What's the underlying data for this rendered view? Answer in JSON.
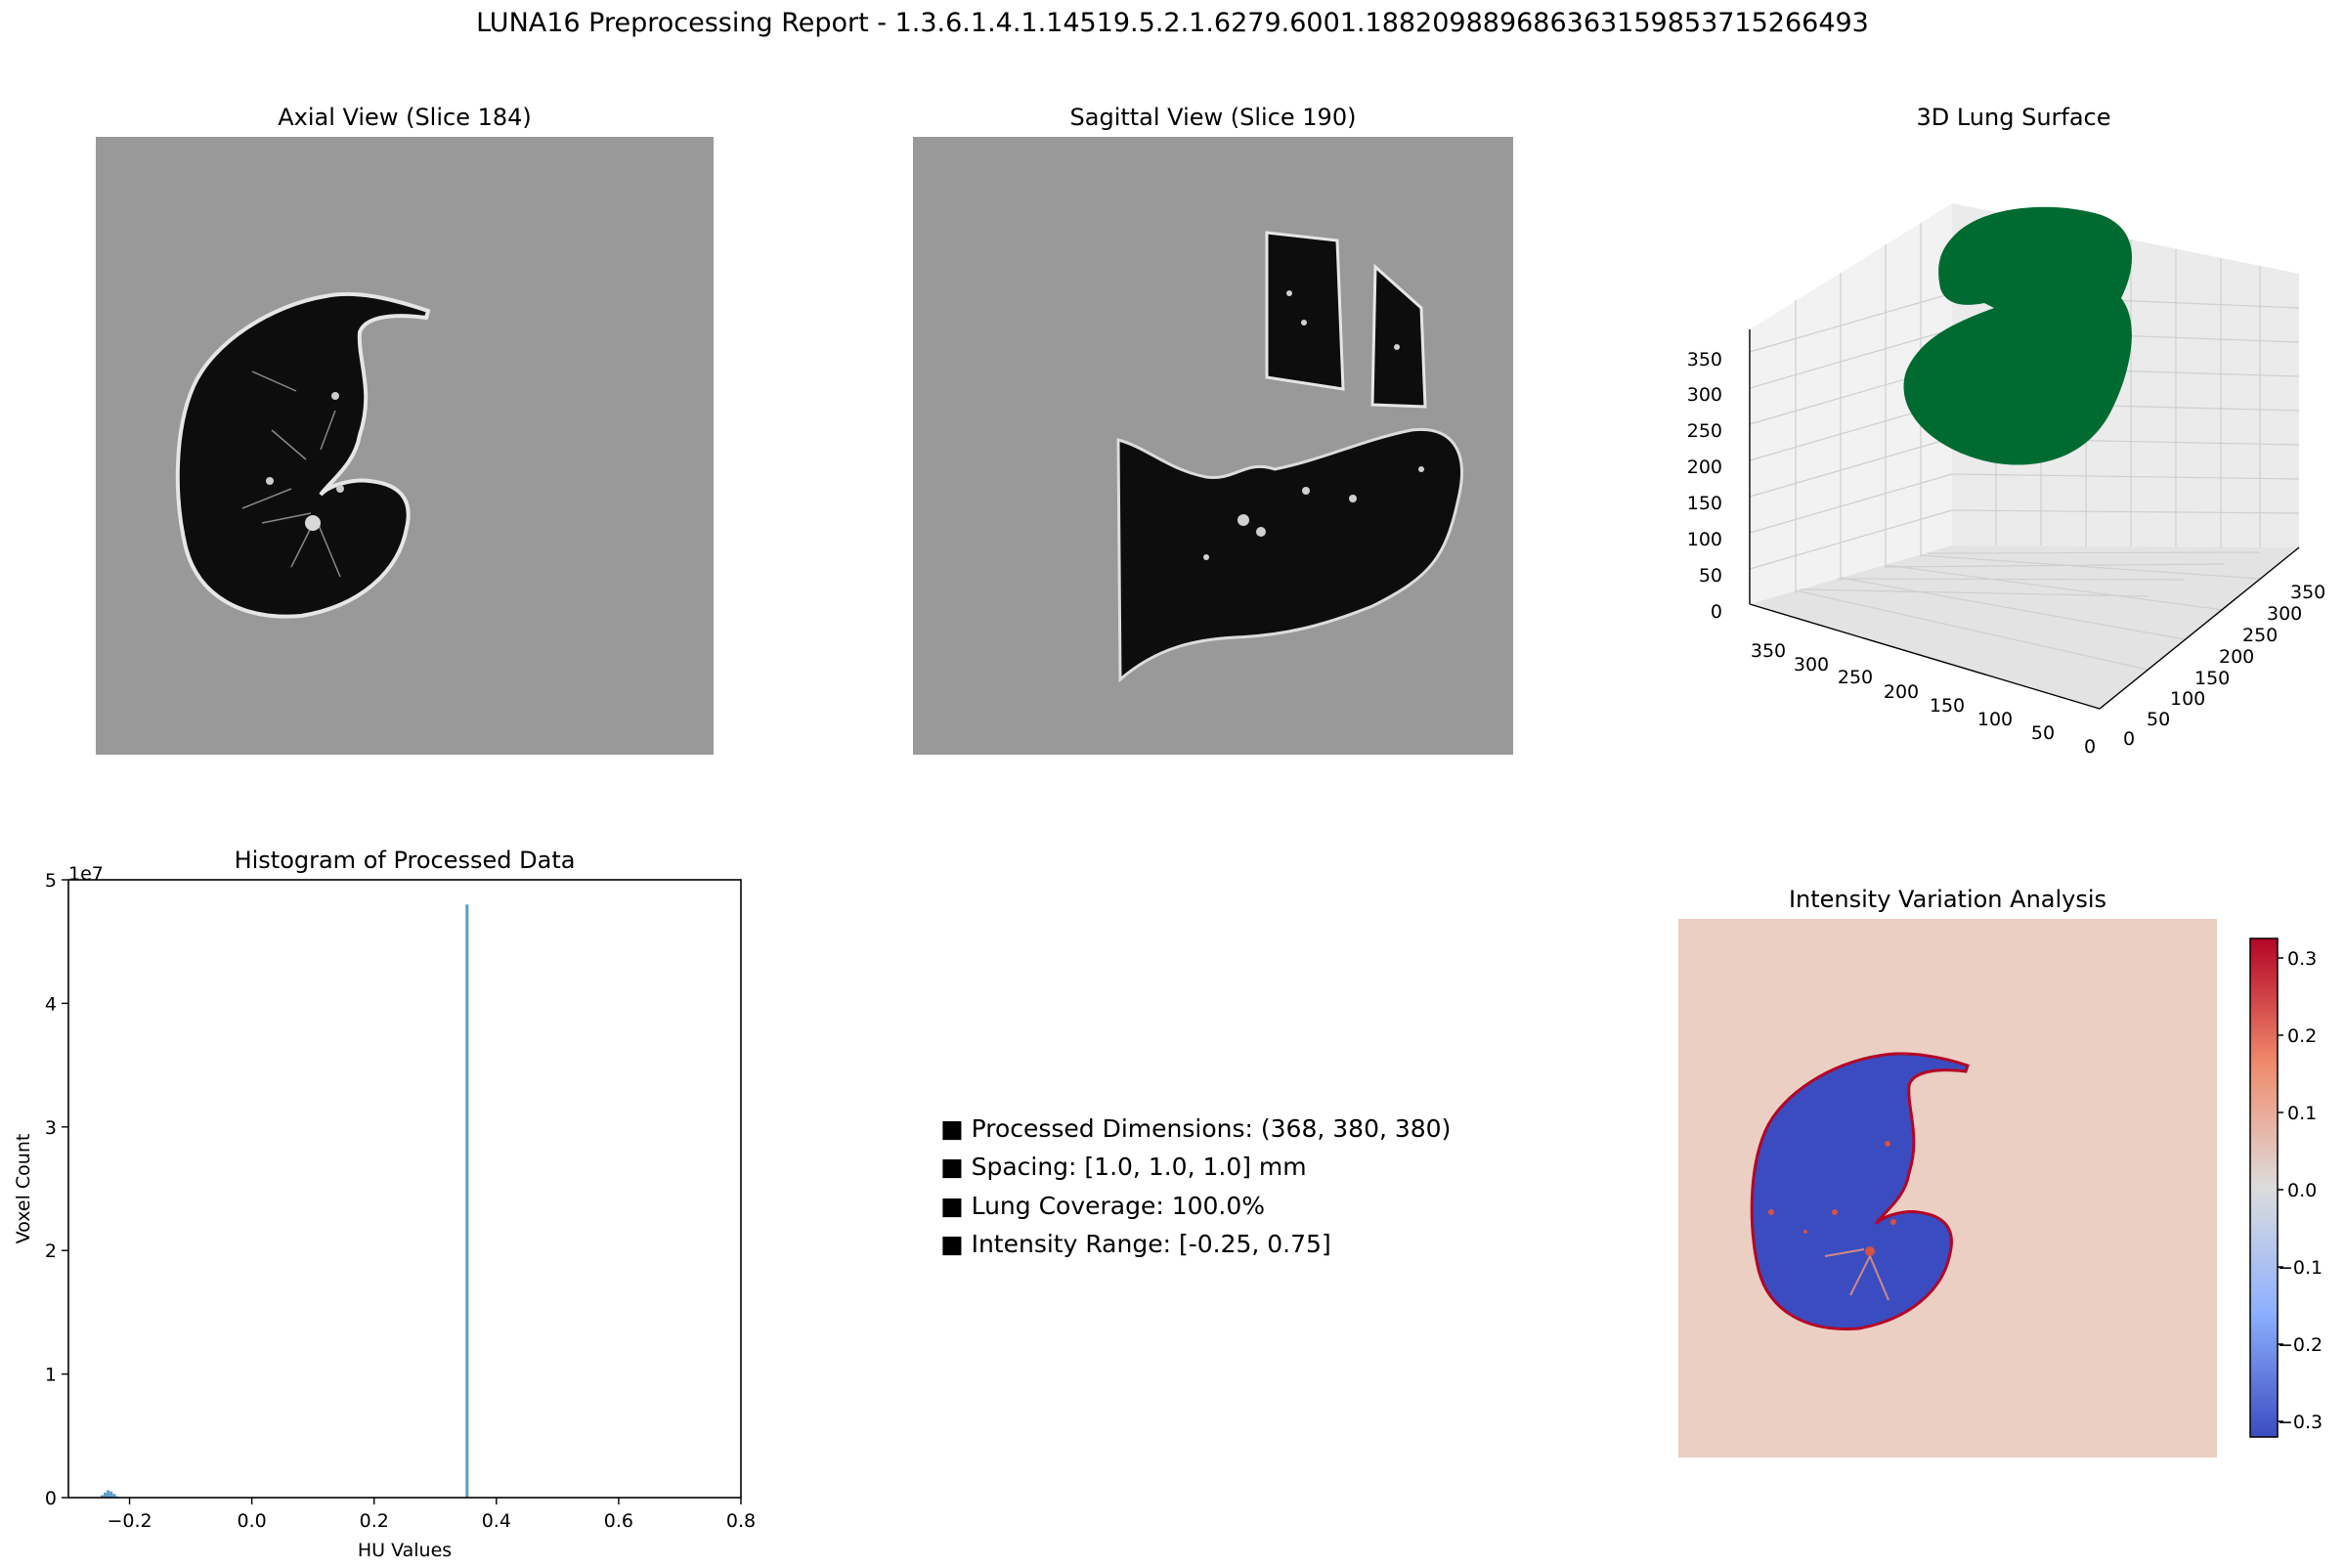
{
  "report": {
    "title": "LUNA16 Preprocessing Report - 1.3.6.1.4.1.14519.5.2.1.6279.6001.188209889686363159853715266493"
  },
  "axial": {
    "title": "Axial View (Slice 184)"
  },
  "sagittal": {
    "title": "Sagittal View (Slice 190)"
  },
  "surface3d": {
    "title": "3D Lung Surface",
    "surface_color": "#006b31",
    "z_ticks": [
      "0",
      "50",
      "100",
      "150",
      "200",
      "250",
      "300",
      "350"
    ],
    "x_ticks": [
      "350",
      "300",
      "250",
      "200",
      "150",
      "100",
      "50",
      "0"
    ],
    "y_ticks": [
      "0",
      "50",
      "100",
      "150",
      "200",
      "250",
      "300",
      "350"
    ]
  },
  "info": {
    "bullet": "■",
    "lines": [
      "Processed Dimensions: (368, 380, 380)",
      "Spacing: [1.0, 1.0, 1.0] mm",
      "Lung Coverage: 100.0%",
      "Intensity Range: [-0.25, 0.75]"
    ]
  },
  "intensity": {
    "title": "Intensity Variation Analysis",
    "colorbar_ticks": [
      "0.3",
      "0.2",
      "0.1",
      "0.0",
      "−0.1",
      "−0.2",
      "−0.3"
    ],
    "cmap": "coolwarm"
  },
  "chart_data": {
    "type": "bar",
    "title": "Histogram of Processed Data",
    "xlabel": "HU Values",
    "ylabel": "Voxel Count",
    "y_multiplier": "1e7",
    "xlim": [
      -0.3,
      0.8
    ],
    "ylim": [
      0,
      5
    ],
    "x_ticks": [
      -0.2,
      0.0,
      0.2,
      0.4,
      0.6,
      0.8
    ],
    "x_tick_labels": [
      "−0.2",
      "0.0",
      "0.2",
      "0.4",
      "0.6",
      "0.8"
    ],
    "y_ticks": [
      0,
      1,
      2,
      3,
      4,
      5
    ],
    "y_tick_labels": [
      "0",
      "1",
      "2",
      "3",
      "4",
      "5"
    ],
    "bar_color": "#5b9ec9",
    "bins": [
      {
        "x": -0.245,
        "value": 0.02
      },
      {
        "x": -0.24,
        "value": 0.04
      },
      {
        "x": -0.235,
        "value": 0.06
      },
      {
        "x": -0.23,
        "value": 0.05
      },
      {
        "x": -0.225,
        "value": 0.03
      },
      {
        "x": -0.22,
        "value": 0.01
      },
      {
        "x": 0.352,
        "value": 4.8
      }
    ]
  }
}
